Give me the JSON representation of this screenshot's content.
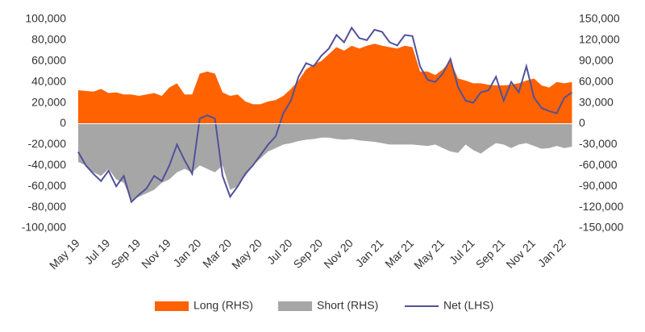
{
  "chart_data": {
    "type": "combo",
    "categories": [
      "May 19",
      null,
      null,
      null,
      "Jul 19",
      null,
      null,
      null,
      "Sep 19",
      null,
      null,
      null,
      "Nov 19",
      null,
      null,
      null,
      "Jan 20",
      null,
      null,
      null,
      "Mar 20",
      null,
      null,
      null,
      "May 20",
      null,
      null,
      null,
      "Jul 20",
      null,
      null,
      null,
      "Sep 20",
      null,
      null,
      null,
      "Nov 20",
      null,
      null,
      null,
      "Jan 21",
      null,
      null,
      null,
      "Mar 21",
      null,
      null,
      null,
      "May 21",
      null,
      null,
      null,
      "Jul 21",
      null,
      null,
      null,
      "Sep 21",
      null,
      null,
      null,
      "Nov 21",
      null,
      null,
      null,
      "Jan 22",
      null
    ],
    "series": [
      {
        "name": "Long (RHS)",
        "type": "area",
        "axis": "y2",
        "color": "#ff6200",
        "values": [
          48000,
          47000,
          46000,
          50000,
          44000,
          45000,
          42000,
          42000,
          40000,
          42000,
          44000,
          40000,
          52000,
          58000,
          42000,
          42000,
          72000,
          75000,
          72000,
          45000,
          40000,
          42000,
          32000,
          28000,
          28000,
          32000,
          34000,
          40000,
          50000,
          62000,
          78000,
          85000,
          90000,
          100000,
          110000,
          105000,
          112000,
          108000,
          112000,
          115000,
          112000,
          110000,
          108000,
          112000,
          110000,
          75000,
          75000,
          70000,
          78000,
          90000,
          65000,
          62000,
          58000,
          58000,
          56000,
          55000,
          55000,
          56000,
          58000,
          62000,
          65000,
          55000,
          52000,
          60000,
          58000,
          60000
        ]
      },
      {
        "name": "Short (RHS)",
        "type": "area",
        "axis": "y2",
        "color": "#a6a6a6",
        "values": [
          -55000,
          -60000,
          -70000,
          -75000,
          -65000,
          -80000,
          -85000,
          -110000,
          -105000,
          -100000,
          -95000,
          -85000,
          -80000,
          -70000,
          -65000,
          -70000,
          -60000,
          -65000,
          -70000,
          -60000,
          -95000,
          -90000,
          -75000,
          -60000,
          -50000,
          -40000,
          -35000,
          -30000,
          -28000,
          -25000,
          -23000,
          -22000,
          -20000,
          -20000,
          -22000,
          -23000,
          -22000,
          -24000,
          -25000,
          -26000,
          -28000,
          -30000,
          -30000,
          -30000,
          -30000,
          -31000,
          -32000,
          -30000,
          -35000,
          -40000,
          -42000,
          -30000,
          -38000,
          -43000,
          -35000,
          -28000,
          -30000,
          -35000,
          -30000,
          -28000,
          -32000,
          -36000,
          -35000,
          -32000,
          -35000,
          -33000
        ]
      },
      {
        "name": "Net (LHS)",
        "type": "line",
        "color": "#525199",
        "values": [
          -27000,
          -40000,
          -48000,
          -55000,
          -45000,
          -60000,
          -50000,
          -75000,
          -68000,
          -62000,
          -50000,
          -55000,
          -40000,
          -20000,
          -35000,
          -48000,
          5000,
          8000,
          5000,
          -50000,
          -70000,
          -60000,
          -48000,
          -40000,
          -30000,
          -20000,
          -12000,
          10000,
          22000,
          45000,
          58000,
          55000,
          65000,
          72000,
          85000,
          78000,
          92000,
          82000,
          80000,
          90000,
          88000,
          78000,
          75000,
          85000,
          84000,
          55000,
          42000,
          40000,
          48000,
          62000,
          35000,
          22000,
          20000,
          30000,
          32000,
          45000,
          22000,
          40000,
          30000,
          55000,
          25000,
          15000,
          12000,
          10000,
          25000,
          30000
        ]
      }
    ],
    "ylim": [
      -100000,
      100000
    ],
    "yticks": [
      {
        "value": -100000,
        "label": "-100,000"
      },
      {
        "value": -80000,
        "label": "-80,000"
      },
      {
        "value": -60000,
        "label": "-60,000"
      },
      {
        "value": -40000,
        "label": "-40,000"
      },
      {
        "value": -20000,
        "label": "-20,000"
      },
      0,
      {
        "value": 20000,
        "label": "20,000"
      },
      {
        "value": 40000,
        "label": "40,000"
      },
      {
        "value": 60000,
        "label": "60,000"
      },
      {
        "value": 80000,
        "label": "80,000"
      },
      {
        "value": 100000,
        "label": "100,000"
      }
    ],
    "y2lim": [
      -150000,
      150000
    ],
    "y2ticks": [
      {
        "value": -150000,
        "label": "-150,000"
      },
      {
        "value": -120000,
        "label": "-120,000"
      },
      {
        "value": -90000,
        "label": "-90,000"
      },
      {
        "value": -60000,
        "label": "-60,000"
      },
      {
        "value": -30000,
        "label": "-30,000"
      },
      0,
      {
        "value": 30000,
        "label": "30,000"
      },
      {
        "value": 60000,
        "label": "60,000"
      },
      {
        "value": 90000,
        "label": "90,000"
      },
      {
        "value": 120000,
        "label": "120,000"
      },
      {
        "value": 150000,
        "label": "150,000"
      }
    ],
    "legend": "bottom"
  }
}
